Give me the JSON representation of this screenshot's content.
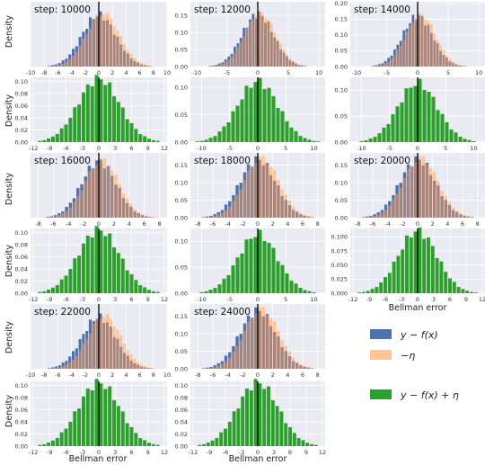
{
  "figure": {
    "ylabel": "Density",
    "xlabel": "Bellman error",
    "legend": [
      {
        "label": "y − f(x)",
        "color": "#4c72b0"
      },
      {
        "label": "−η",
        "color": "#ffc597"
      },
      {
        "label": "y − f(x) + η",
        "color": "#2ca02c"
      }
    ],
    "colors": {
      "background": "#eaeaf2",
      "grid": "#ffffff",
      "blue": "#4c72b0",
      "orange": "#ffc597",
      "overlap": "#a8847a",
      "green": "#2ca02c",
      "zero_line": "#000000"
    }
  },
  "chart_data": [
    {
      "panel": "step-10000",
      "type": "bar",
      "annotation": "step: 10000",
      "top": {
        "xticks": [
          -10,
          -8,
          -6,
          -4,
          -2,
          0,
          2,
          4,
          6,
          8,
          10
        ],
        "xlim": [
          -10,
          10
        ],
        "yticks": [],
        "ylim": [
          0,
          0.2
        ],
        "mu_yf": 0.0,
        "mu_eta": 0.6,
        "sigma": 2.5
      },
      "bottom": {
        "xticks": [
          -12,
          -9,
          -6,
          -3,
          0,
          3,
          6,
          9,
          12
        ],
        "xlim": [
          -12.5,
          12.5
        ],
        "yticks": [
          0.0,
          0.02,
          0.04,
          0.06,
          0.08,
          0.1
        ],
        "ylim": [
          0,
          0.107
        ],
        "sigma": 3.8
      }
    },
    {
      "panel": "step-12000",
      "type": "bar",
      "annotation": "step: 12000",
      "top": {
        "xticks": [
          -10,
          -5,
          0,
          5,
          10
        ],
        "xlim": [
          -11,
          11
        ],
        "yticks": [
          0.0,
          0.05,
          0.1,
          0.15
        ],
        "ylim": [
          0,
          0.19
        ],
        "mu_yf": 0.0,
        "mu_eta": 0.4,
        "sigma": 2.6
      },
      "bottom": {
        "xticks": [
          -10,
          -5,
          0,
          5,
          10
        ],
        "xlim": [
          -12,
          12
        ],
        "yticks": [
          0.0,
          0.05,
          0.1
        ],
        "ylim": [
          0,
          0.118
        ],
        "sigma": 3.6
      }
    },
    {
      "panel": "step-14000",
      "type": "bar",
      "annotation": "step: 14000",
      "top": {
        "xticks": [
          -10,
          -5,
          0,
          5,
          10
        ],
        "xlim": [
          -11,
          11
        ],
        "yticks": [
          0.0,
          0.05,
          0.1,
          0.15,
          0.2
        ],
        "ylim": [
          0,
          0.205
        ],
        "mu_yf": 0.0,
        "mu_eta": 0.5,
        "sigma": 2.5
      },
      "bottom": {
        "xticks": [
          -10,
          -5,
          0,
          5,
          10
        ],
        "xlim": [
          -12,
          12
        ],
        "yticks": [
          0.0,
          0.05,
          0.1
        ],
        "ylim": [
          0,
          0.125
        ],
        "sigma": 3.5
      }
    },
    {
      "panel": "step-16000",
      "type": "bar",
      "annotation": "step: 16000",
      "top": {
        "xticks": [
          -8,
          -6,
          -4,
          -2,
          0,
          2,
          4,
          6,
          8
        ],
        "xlim": [
          -9,
          9
        ],
        "yticks": [],
        "ylim": [
          0,
          0.2
        ],
        "mu_yf": 0.0,
        "mu_eta": 0.4,
        "sigma": 2.3
      },
      "bottom": {
        "xticks": [
          -12,
          -9,
          -6,
          -3,
          0,
          3,
          6,
          9,
          12
        ],
        "xlim": [
          -12.5,
          12.5
        ],
        "yticks": [
          0.0,
          0.02,
          0.04,
          0.06,
          0.08,
          0.1
        ],
        "ylim": [
          0,
          0.107
        ],
        "sigma": 3.8
      }
    },
    {
      "panel": "step-18000",
      "type": "bar",
      "annotation": "step: 18000",
      "top": {
        "xticks": [
          -8,
          -6,
          -4,
          -2,
          0,
          2,
          4,
          6,
          8
        ],
        "xlim": [
          -9,
          9
        ],
        "yticks": [
          0.0,
          0.05,
          0.1,
          0.15
        ],
        "ylim": [
          0,
          0.185
        ],
        "mu_yf": 0.0,
        "mu_eta": 0.5,
        "sigma": 2.4
      },
      "bottom": {
        "xticks": [
          -10,
          -5,
          0,
          5,
          10
        ],
        "xlim": [
          -12,
          12
        ],
        "yticks": [
          0.0,
          0.05,
          0.1
        ],
        "ylim": [
          0,
          0.125
        ],
        "sigma": 3.5
      }
    },
    {
      "panel": "step-20000",
      "type": "bar",
      "annotation": "step: 20000",
      "top": {
        "xticks": [
          -8,
          -6,
          -4,
          -2,
          0,
          2,
          4,
          6,
          8
        ],
        "xlim": [
          -9,
          9
        ],
        "yticks": [
          0.0,
          0.05,
          0.1,
          0.15
        ],
        "ylim": [
          0,
          0.185
        ],
        "mu_yf": 0.0,
        "mu_eta": 0.4,
        "sigma": 2.4
      },
      "bottom": {
        "xticks": [
          -12,
          -9,
          -6,
          -3,
          0,
          3,
          6,
          9,
          12
        ],
        "xlim": [
          -12.5,
          12.5
        ],
        "yticks": [
          0.0,
          0.025,
          0.05,
          0.075,
          0.1
        ],
        "ylim": [
          0,
          0.115
        ],
        "sigma": 3.6
      }
    },
    {
      "panel": "step-22000",
      "type": "bar",
      "annotation": "step: 22000",
      "top": {
        "xticks": [
          -10,
          -8,
          -6,
          -4,
          -2,
          0,
          2,
          4,
          6,
          8,
          10
        ],
        "xlim": [
          -10,
          10
        ],
        "yticks": [],
        "ylim": [
          0,
          0.2
        ],
        "mu_yf": 0.0,
        "mu_eta": 0.8,
        "sigma": 2.5
      },
      "bottom": {
        "xticks": [
          -12,
          -9,
          -6,
          -3,
          0,
          3,
          6,
          9,
          12
        ],
        "xlim": [
          -12.5,
          12.5
        ],
        "yticks": [
          0.0,
          0.02,
          0.04,
          0.06,
          0.08,
          0.1
        ],
        "ylim": [
          0,
          0.107
        ],
        "sigma": 3.8
      }
    },
    {
      "panel": "step-24000",
      "type": "bar",
      "annotation": "step: 24000",
      "top": {
        "xticks": [
          -8,
          -6,
          -4,
          -2,
          0,
          2,
          4,
          6,
          8
        ],
        "xlim": [
          -9,
          9
        ],
        "yticks": [
          0.0,
          0.05,
          0.1,
          0.15
        ],
        "ylim": [
          0,
          0.185
        ],
        "mu_yf": 0.0,
        "mu_eta": 0.5,
        "sigma": 2.4
      },
      "bottom": {
        "xticks": [
          -12,
          -9,
          -6,
          -3,
          0,
          3,
          6,
          9,
          12
        ],
        "xlim": [
          -12.5,
          12.5
        ],
        "yticks": [
          0.0,
          0.02,
          0.04,
          0.06,
          0.08,
          0.1
        ],
        "ylim": [
          0,
          0.107
        ],
        "sigma": 3.8
      }
    }
  ]
}
